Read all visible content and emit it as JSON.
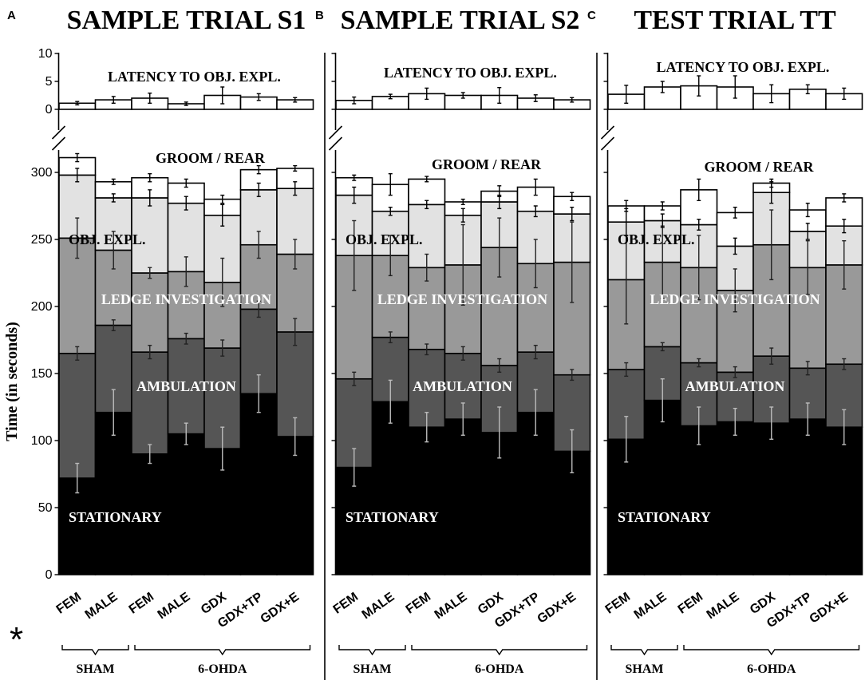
{
  "figure": {
    "ylabel": "Time (in seconds)",
    "asterisk": "*",
    "groups": [
      {
        "label": "SHAM",
        "span": [
          0,
          1
        ]
      },
      {
        "label": "6-OHDA",
        "span": [
          2,
          6
        ]
      }
    ],
    "segment_labels": [
      {
        "key": "stationary",
        "text": "STATIONARY",
        "color": "#ffffff"
      },
      {
        "key": "ambulation",
        "text": "AMBULATION",
        "color": "#ffffff"
      },
      {
        "key": "ledge",
        "text": "LEDGE INVESTIGATION",
        "color": "#ffffff"
      },
      {
        "key": "obj",
        "text": "OBJ. EXPL.",
        "color": "#000000"
      },
      {
        "key": "groom",
        "text": "GROOM / REAR",
        "color": "#000000"
      },
      {
        "key": "latency",
        "text": "LATENCY TO OBJ. EXPL.",
        "color": "#000000"
      }
    ],
    "colors": {
      "stationary": "#000000",
      "ambulation": "#555555",
      "ledge": "#999999",
      "obj": "#e2e2e2",
      "groom": "#ffffff",
      "latency": "#ffffff"
    }
  },
  "chart_data": [
    {
      "type": "bar",
      "letter": "A",
      "title": "SAMPLE TRIAL S1",
      "ylabel": "Time (in seconds)",
      "stacked": true,
      "categories": [
        "FEM",
        "MALE",
        "FEM",
        "MALE",
        "GDX",
        "GDX+TP",
        "GDX+E"
      ],
      "ylim": [
        0,
        310
      ],
      "yticks": [
        0,
        50,
        100,
        150,
        200,
        250,
        300
      ],
      "series": [
        {
          "name": "STATIONARY",
          "values": [
            72,
            121,
            90,
            105,
            94,
            135,
            103
          ],
          "errors": [
            11,
            17,
            7,
            8,
            16,
            14,
            14
          ]
        },
        {
          "name": "AMBULATION",
          "values": [
            93,
            65,
            76,
            71,
            75,
            63,
            78
          ],
          "errors": [
            5,
            4,
            5,
            4,
            6,
            6,
            10
          ]
        },
        {
          "name": "LEDGE INVESTIGATION",
          "values": [
            86,
            56,
            59,
            50,
            49,
            48,
            58
          ],
          "errors": [
            15,
            14,
            4,
            11,
            18,
            10,
            11
          ]
        },
        {
          "name": "OBJ. EXPL.",
          "values": [
            47,
            39,
            56,
            51,
            50,
            41,
            49
          ],
          "errors": [
            5,
            3,
            6,
            5,
            8,
            5,
            5
          ]
        },
        {
          "name": "GROOM / REAR",
          "values": [
            13,
            12,
            15,
            15,
            12,
            15,
            15
          ],
          "errors": [
            3,
            2,
            3,
            3,
            3,
            3,
            2
          ]
        }
      ],
      "latency": {
        "name": "LATENCY TO OBJ. EXPL.",
        "ylim": [
          0,
          10
        ],
        "yticks": [
          0,
          5,
          10
        ],
        "values": [
          1.1,
          1.7,
          2.0,
          1.0,
          2.5,
          2.2,
          1.7
        ],
        "errors": [
          0.3,
          0.6,
          0.9,
          0.3,
          1.5,
          0.6,
          0.4
        ]
      }
    },
    {
      "type": "bar",
      "letter": "B",
      "title": "SAMPLE TRIAL S2",
      "stacked": true,
      "categories": [
        "FEM",
        "MALE",
        "FEM",
        "MALE",
        "GDX",
        "GDX+TP",
        "GDX+E"
      ],
      "ylim": [
        0,
        310
      ],
      "series": [
        {
          "name": "STATIONARY",
          "values": [
            80,
            129,
            110,
            116,
            106,
            121,
            92
          ],
          "errors": [
            14,
            16,
            11,
            12,
            19,
            17,
            16
          ]
        },
        {
          "name": "AMBULATION",
          "values": [
            66,
            48,
            58,
            49,
            50,
            45,
            57
          ],
          "errors": [
            5,
            4,
            4,
            5,
            5,
            5,
            4
          ]
        },
        {
          "name": "LEDGE INVESTIGATION",
          "values": [
            92,
            61,
            61,
            66,
            88,
            66,
            84
          ],
          "errors": [
            26,
            15,
            10,
            30,
            22,
            18,
            30
          ]
        },
        {
          "name": "OBJ. EXPL.",
          "values": [
            45,
            33,
            47,
            37,
            34,
            39,
            36
          ],
          "errors": [
            6,
            3,
            3,
            5,
            5,
            4,
            5
          ]
        },
        {
          "name": "GROOM / REAR",
          "values": [
            13,
            20,
            19,
            10,
            8,
            18,
            13
          ],
          "errors": [
            2,
            8,
            2,
            2,
            4,
            6,
            3
          ]
        }
      ],
      "latency": {
        "values": [
          1.6,
          2.3,
          2.8,
          2.5,
          2.5,
          2.0,
          1.7
        ],
        "errors": [
          0.6,
          0.4,
          1.0,
          0.5,
          1.4,
          0.6,
          0.4
        ]
      }
    },
    {
      "type": "bar",
      "letter": "C",
      "title": "TEST TRIAL TT",
      "stacked": true,
      "categories": [
        "FEM",
        "MALE",
        "FEM",
        "MALE",
        "GDX",
        "GDX+TP",
        "GDX+E"
      ],
      "ylim": [
        0,
        310
      ],
      "series": [
        {
          "name": "STATIONARY",
          "values": [
            101,
            130,
            111,
            114,
            113,
            116,
            110
          ],
          "errors": [
            17,
            16,
            14,
            10,
            12,
            12,
            13
          ]
        },
        {
          "name": "AMBULATION",
          "values": [
            52,
            40,
            47,
            37,
            50,
            38,
            47
          ],
          "errors": [
            5,
            3,
            3,
            4,
            6,
            5,
            4
          ]
        },
        {
          "name": "LEDGE INVESTIGATION",
          "values": [
            67,
            63,
            71,
            61,
            83,
            75,
            74
          ],
          "errors": [
            33,
            27,
            24,
            16,
            26,
            20,
            18
          ]
        },
        {
          "name": "OBJ. EXPL.",
          "values": [
            43,
            31,
            32,
            33,
            39,
            27,
            29
          ],
          "errors": [
            10,
            5,
            4,
            6,
            8,
            6,
            5
          ]
        },
        {
          "name": "GROOM / REAR",
          "values": [
            12,
            11,
            26,
            25,
            7,
            16,
            21
          ],
          "errors": [
            4,
            3,
            8,
            4,
            3,
            5,
            3
          ]
        }
      ],
      "latency": {
        "values": [
          2.7,
          4.0,
          4.2,
          4.0,
          2.8,
          3.6,
          2.8
        ],
        "errors": [
          1.6,
          1.0,
          1.8,
          2.0,
          1.6,
          0.8,
          1.0
        ]
      }
    }
  ]
}
